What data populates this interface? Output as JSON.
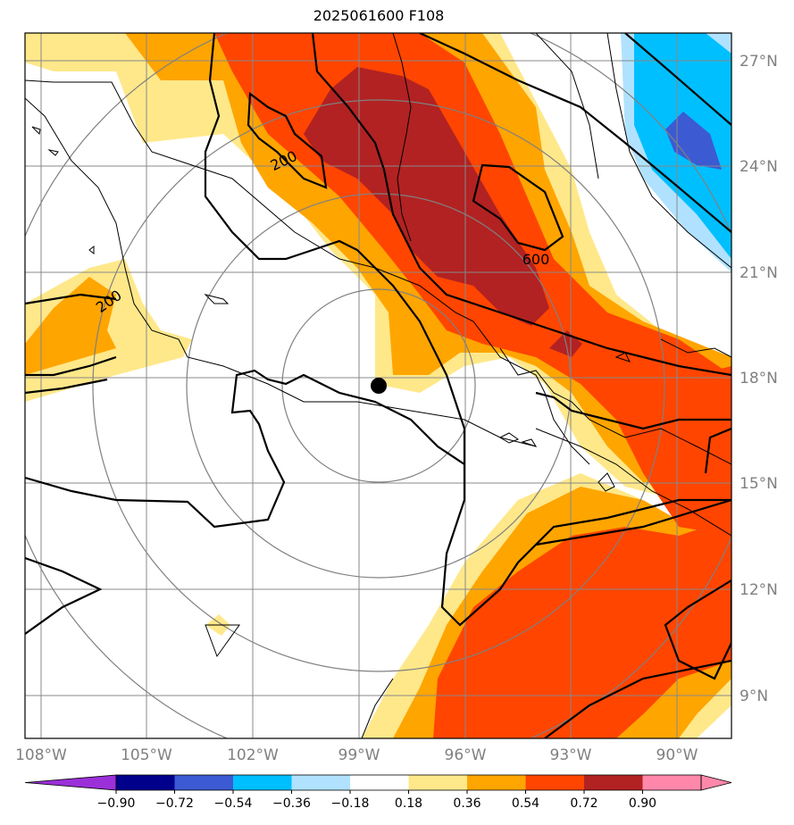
{
  "title": "2025061600 F108",
  "map": {
    "lon_labels": [
      "108°W",
      "105°W",
      "102°W",
      "99°W",
      "96°W",
      "93°W",
      "90°W"
    ],
    "lat_labels": [
      "27°N",
      "24°N",
      "21°N",
      "18°N",
      "15°N",
      "12°N",
      "9°N"
    ],
    "contour_labels": [
      "200",
      "200",
      "600"
    ],
    "center_marker": {
      "lon": -98.5,
      "lat": 17.7
    }
  },
  "colorbar": {
    "tick_labels": [
      "−0.90",
      "−0.72",
      "−0.54",
      "−0.36",
      "−0.18",
      "0.18",
      "0.36",
      "0.54",
      "0.72",
      "0.90"
    ],
    "colors": [
      "#9b30d9",
      "#00008b",
      "#3c5ad2",
      "#00bfff",
      "#b0e2ff",
      "#ffffff",
      "#ffe88a",
      "#ffa500",
      "#ff4500",
      "#b22222",
      "#ff88aa"
    ]
  }
}
